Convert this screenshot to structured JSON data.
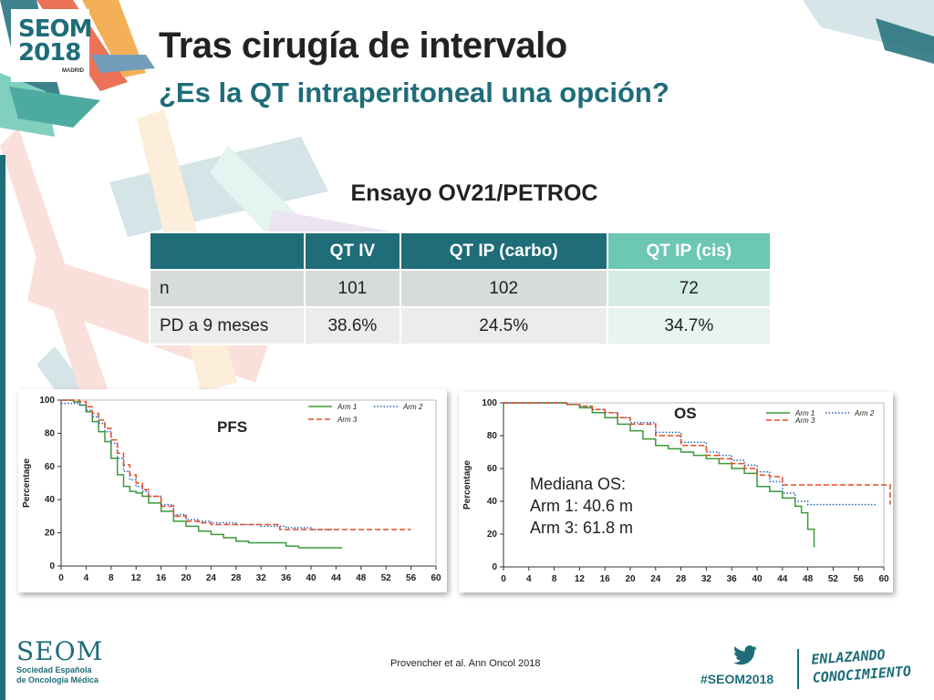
{
  "header": {
    "logo_text": "SEOM",
    "logo_year": "2018",
    "logo_city": "MADRID",
    "title": "Tras cirugía de intervalo",
    "subtitle": "¿Es la QT intraperitoneal una opción?"
  },
  "trial_title": "Ensayo OV21/PETROC",
  "table": {
    "columns": [
      "",
      "QT IV",
      "QT IP (carbo)",
      "QT IP (cis)"
    ],
    "rows": [
      [
        "n",
        "101",
        "102",
        "72"
      ],
      [
        "PD a 9 meses",
        "38.6%",
        "24.5%",
        "34.7%"
      ]
    ]
  },
  "colors": {
    "teal": "#1e6d79",
    "mint": "#6cc7b4",
    "arm1": "#3a9a3a",
    "arm2": "#2a62b8",
    "arm3": "#e84a24"
  },
  "chart_data": [
    {
      "type": "line",
      "title": "PFS",
      "ylabel": "Percentage",
      "xlabel": "",
      "xlim": [
        0,
        60
      ],
      "ylim": [
        0,
        100
      ],
      "xticks": [
        0,
        4,
        8,
        12,
        16,
        20,
        24,
        28,
        32,
        36,
        40,
        44,
        48,
        52,
        56,
        60
      ],
      "yticks": [
        0,
        20,
        40,
        60,
        80,
        100
      ],
      "legend": "top-right",
      "step": true,
      "series": [
        {
          "name": "Arm 1",
          "color": "#3a9a3a",
          "style": "solid",
          "x": [
            0,
            1,
            2,
            3,
            4,
            5,
            6,
            7,
            8,
            9,
            10,
            11,
            12,
            13,
            14,
            16,
            18,
            20,
            22,
            24,
            26,
            28,
            30,
            32,
            36,
            38,
            40,
            45
          ],
          "y": [
            100,
            100,
            99,
            97,
            93,
            87,
            81,
            75,
            65,
            55,
            48,
            45,
            44,
            42,
            38,
            33,
            27,
            24,
            21,
            19,
            17,
            15,
            14,
            14,
            12,
            11,
            11,
            11
          ]
        },
        {
          "name": "Arm 2",
          "color": "#2a62b8",
          "style": "dotted",
          "x": [
            0,
            1,
            2,
            3,
            4,
            5,
            6,
            7,
            8,
            9,
            10,
            11,
            12,
            13,
            14,
            16,
            18,
            20,
            22,
            24,
            28,
            32,
            36,
            40,
            44
          ],
          "y": [
            98,
            98,
            98,
            97,
            94,
            90,
            86,
            81,
            74,
            65,
            57,
            52,
            48,
            45,
            42,
            37,
            31,
            28,
            27,
            26,
            25,
            24,
            23,
            22,
            22
          ]
        },
        {
          "name": "Arm 3",
          "color": "#e84a24",
          "style": "dashed",
          "x": [
            0,
            1,
            2,
            3,
            4,
            5,
            6,
            7,
            8,
            9,
            10,
            11,
            12,
            13,
            14,
            16,
            18,
            20,
            22,
            24,
            28,
            32,
            35,
            40,
            44,
            48,
            52,
            56
          ],
          "y": [
            100,
            100,
            100,
            99,
            96,
            92,
            88,
            83,
            76,
            68,
            61,
            55,
            50,
            46,
            42,
            36,
            30,
            27,
            26,
            25,
            25,
            25,
            22,
            22,
            22,
            22,
            22,
            22
          ]
        }
      ]
    },
    {
      "type": "line",
      "title": "OS",
      "ylabel": "Percentage",
      "xlabel": "",
      "xlim": [
        0,
        60
      ],
      "ylim": [
        0,
        100
      ],
      "xticks": [
        0,
        4,
        8,
        12,
        16,
        20,
        24,
        28,
        32,
        36,
        40,
        44,
        48,
        52,
        56,
        60
      ],
      "yticks": [
        0,
        20,
        40,
        60,
        80,
        100
      ],
      "legend": "top-right",
      "step": true,
      "annotation": [
        "Mediana OS:",
        "Arm 1: 40.6 m",
        "Arm 3: 61.8 m"
      ],
      "series": [
        {
          "name": "Arm 1",
          "color": "#3a9a3a",
          "style": "solid",
          "x": [
            0,
            8,
            10,
            12,
            14,
            16,
            18,
            20,
            22,
            24,
            26,
            28,
            30,
            32,
            34,
            36,
            38,
            40,
            42,
            44,
            46,
            47,
            48,
            49
          ],
          "y": [
            100,
            100,
            99,
            97,
            94,
            91,
            87,
            83,
            78,
            74,
            72,
            70,
            68,
            66,
            63,
            60,
            57,
            49,
            46,
            42,
            37,
            33,
            23,
            12
          ]
        },
        {
          "name": "Arm 2",
          "color": "#2a62b8",
          "style": "dotted",
          "x": [
            0,
            8,
            10,
            12,
            14,
            16,
            18,
            20,
            24,
            28,
            32,
            34,
            36,
            38,
            40,
            42,
            44,
            46,
            48,
            52,
            56,
            59
          ],
          "y": [
            100,
            100,
            99,
            98,
            96,
            94,
            91,
            88,
            82,
            76,
            70,
            68,
            65,
            62,
            58,
            52,
            45,
            40,
            38,
            38,
            38,
            38
          ]
        },
        {
          "name": "Arm 3",
          "color": "#e84a24",
          "style": "dashed",
          "x": [
            0,
            8,
            10,
            12,
            14,
            16,
            18,
            20,
            24,
            28,
            32,
            34,
            36,
            38,
            40,
            42,
            44,
            48,
            52,
            56,
            60,
            61
          ],
          "y": [
            100,
            100,
            99,
            98,
            96,
            94,
            91,
            87,
            80,
            74,
            68,
            66,
            63,
            60,
            56,
            55,
            50,
            50,
            50,
            50,
            50,
            38
          ]
        }
      ]
    }
  ],
  "footer": {
    "logo_big": "SEOM",
    "logo_line1": "Sociedad Española",
    "logo_line2": "de Oncología Médica",
    "citation": "Provencher et al. Ann Oncol 2018",
    "hashtag": "#SEOM2018",
    "slogan_line1": "ENLAZANDO",
    "slogan_line2": "CONOCIMIENTO"
  }
}
